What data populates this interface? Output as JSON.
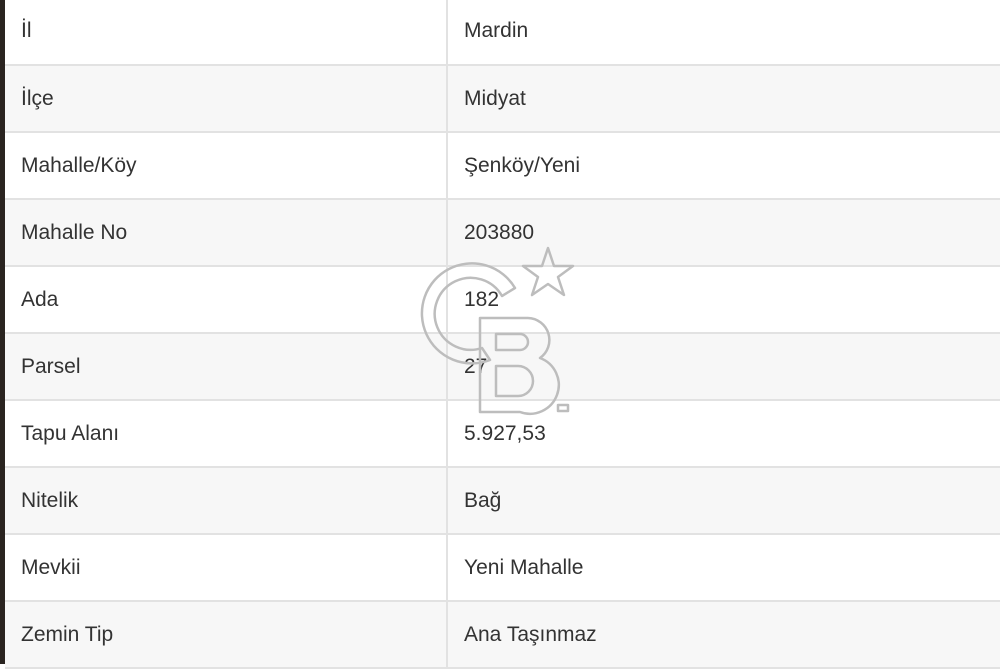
{
  "rows": [
    {
      "label": "İl",
      "value": "Mardin"
    },
    {
      "label": "İlçe",
      "value": "Midyat"
    },
    {
      "label": "Mahalle/Köy",
      "value": "Şenköy/Yeni"
    },
    {
      "label": "Mahalle No",
      "value": "203880"
    },
    {
      "label": "Ada",
      "value": "182"
    },
    {
      "label": "Parsel",
      "value": "27"
    },
    {
      "label": "Tapu Alanı",
      "value": "5.927,53"
    },
    {
      "label": "Nitelik",
      "value": "Bağ"
    },
    {
      "label": "Mevkii",
      "value": "Yeni Mahalle"
    },
    {
      "label": "Zemin Tip",
      "value": "Ana Taşınmaz"
    }
  ],
  "watermark": {
    "text": "CB",
    "icon": "star-icon",
    "color": "#bdbdbd"
  },
  "colors": {
    "row_alt": "#f7f7f7",
    "border": "#e2e2e2",
    "text": "#333333"
  }
}
